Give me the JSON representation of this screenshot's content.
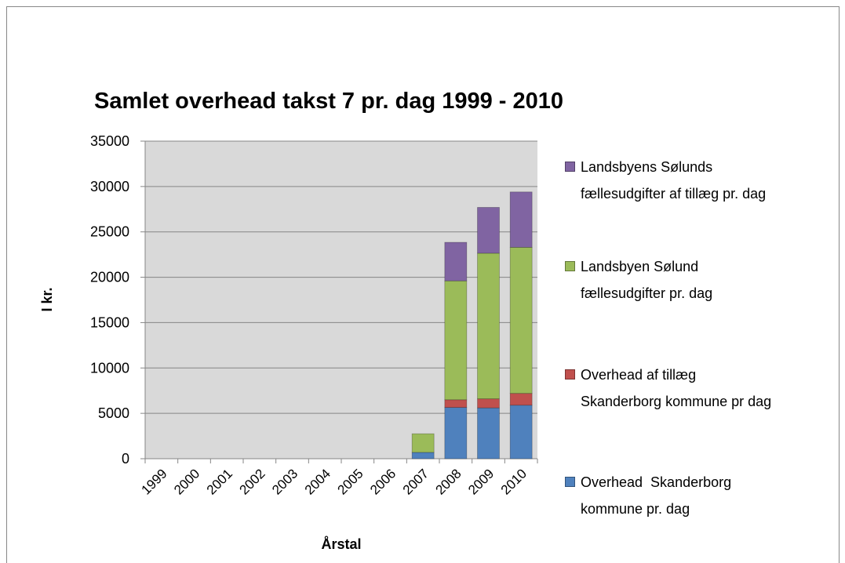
{
  "chart_data": {
    "type": "stacked-bar",
    "title": "Samlet overhead takst 7 pr. dag 1999 - 2010",
    "y_label": "I kr.",
    "x_label": "Årstal",
    "categories": [
      "1999",
      "2000",
      "2001",
      "2002",
      "2003",
      "2004",
      "2005",
      "2006",
      "2007",
      "2008",
      "2009",
      "2010"
    ],
    "series": [
      {
        "name": "Overhead  Skanderborg kommune pr. dag",
        "color": "#4f81bd",
        "values": [
          0,
          0,
          0,
          0,
          0,
          0,
          0,
          0,
          700,
          5650,
          5600,
          5900
        ]
      },
      {
        "name": "Overhead af tillæg Skanderborg kommune pr dag",
        "color": "#c0504d",
        "values": [
          0,
          0,
          0,
          0,
          0,
          0,
          0,
          0,
          0,
          850,
          1000,
          1300
        ]
      },
      {
        "name": "Landsbyen Sølund fællesudgifter pr. dag",
        "color": "#9bbb59",
        "values": [
          0,
          0,
          0,
          0,
          0,
          0,
          0,
          0,
          2050,
          13100,
          16050,
          16100
        ]
      },
      {
        "name": "Landsbyens Sølunds fællesudgifter af tillæg pr. dag",
        "color": "#8064a2",
        "values": [
          0,
          0,
          0,
          0,
          0,
          0,
          0,
          0,
          0,
          4250,
          5050,
          6100
        ]
      }
    ],
    "ylim": [
      0,
      35000
    ],
    "yticks": [
      0,
      5000,
      10000,
      15000,
      20000,
      25000,
      30000,
      35000
    ],
    "grid": true,
    "legend": "right"
  }
}
